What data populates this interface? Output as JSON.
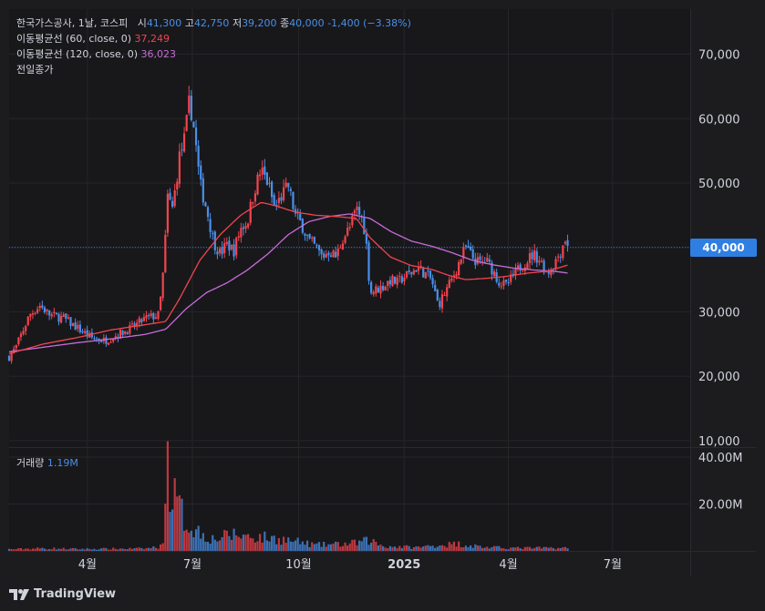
{
  "header": {
    "name": "한국가스공사, 1날, 코스피",
    "open_label": "시",
    "open": "41,300",
    "high_label": "고",
    "high": "42,750",
    "low_label": "저",
    "low": "39,200",
    "close_label": "종",
    "close": "40,000",
    "change": "-1,400 (−3.38%)",
    "ma60_label": "이동평균선 (60, close, 0)",
    "ma60_value": "37,249",
    "ma120_label": "이동평균선 (120, close, 0)",
    "ma120_value": "36,023",
    "prev_close_label": "전일종가"
  },
  "volume_panel": {
    "label": "거래량",
    "value": "1.19M"
  },
  "last_price_tag": "40,000",
  "brand": "TradingView",
  "colors": {
    "up": "#f2444d",
    "down": "#4a8fe7",
    "ma60": "#f2444d",
    "ma120": "#c86bd8",
    "background": "#1c1c1f",
    "accent": "#2f7fe3"
  },
  "chart_data": {
    "type": "candlestick",
    "price_axis": {
      "ticks": [
        "10,000",
        "20,000",
        "30,000",
        "40,000",
        "50,000",
        "60,000",
        "70,000"
      ],
      "ylim": [
        9000,
        77000
      ]
    },
    "volume_axis": {
      "ticks": [
        "20.00M",
        "40.00M"
      ],
      "ylim": [
        0,
        40000000
      ]
    },
    "x_ticks": [
      {
        "label": "4월",
        "pos": 0.115
      },
      {
        "label": "7월",
        "pos": 0.269
      },
      {
        "label": "10월",
        "pos": 0.425
      },
      {
        "label": "2025",
        "pos": 0.58
      },
      {
        "label": "4월",
        "pos": 0.733
      },
      {
        "label": "7월",
        "pos": 0.886
      }
    ],
    "last_price": 40000,
    "price_path": [
      [
        0.0,
        23000
      ],
      [
        0.01,
        24500
      ],
      [
        0.02,
        27000
      ],
      [
        0.03,
        29500
      ],
      [
        0.045,
        31000
      ],
      [
        0.06,
        29500
      ],
      [
        0.08,
        29000
      ],
      [
        0.1,
        27500
      ],
      [
        0.12,
        26000
      ],
      [
        0.14,
        25500
      ],
      [
        0.16,
        26500
      ],
      [
        0.18,
        27500
      ],
      [
        0.2,
        29000
      ],
      [
        0.22,
        29500
      ],
      [
        0.228,
        38000
      ],
      [
        0.232,
        48000
      ],
      [
        0.24,
        46000
      ],
      [
        0.25,
        54000
      ],
      [
        0.258,
        57000
      ],
      [
        0.265,
        63000
      ],
      [
        0.272,
        58000
      ],
      [
        0.28,
        50000
      ],
      [
        0.29,
        46000
      ],
      [
        0.3,
        41000
      ],
      [
        0.31,
        39000
      ],
      [
        0.32,
        40500
      ],
      [
        0.33,
        39500
      ],
      [
        0.34,
        43000
      ],
      [
        0.35,
        44000
      ],
      [
        0.36,
        49000
      ],
      [
        0.37,
        52000
      ],
      [
        0.38,
        50000
      ],
      [
        0.39,
        46000
      ],
      [
        0.4,
        48000
      ],
      [
        0.41,
        49500
      ],
      [
        0.42,
        45000
      ],
      [
        0.43,
        43500
      ],
      [
        0.44,
        41000
      ],
      [
        0.45,
        40000
      ],
      [
        0.46,
        38500
      ],
      [
        0.47,
        39500
      ],
      [
        0.48,
        38500
      ],
      [
        0.49,
        41500
      ],
      [
        0.5,
        43000
      ],
      [
        0.51,
        46000
      ],
      [
        0.52,
        44000
      ],
      [
        0.525,
        40000
      ],
      [
        0.53,
        33000
      ],
      [
        0.54,
        33500
      ],
      [
        0.55,
        34000
      ],
      [
        0.56,
        35000
      ],
      [
        0.57,
        34500
      ],
      [
        0.58,
        35500
      ],
      [
        0.59,
        36000
      ],
      [
        0.6,
        37000
      ],
      [
        0.61,
        36000
      ],
      [
        0.62,
        35000
      ],
      [
        0.63,
        31000
      ],
      [
        0.64,
        33000
      ],
      [
        0.65,
        35000
      ],
      [
        0.66,
        37500
      ],
      [
        0.67,
        40000
      ],
      [
        0.68,
        38500
      ],
      [
        0.69,
        37500
      ],
      [
        0.7,
        38000
      ],
      [
        0.71,
        36500
      ],
      [
        0.72,
        34500
      ],
      [
        0.73,
        34000
      ],
      [
        0.74,
        35500
      ],
      [
        0.75,
        37000
      ],
      [
        0.76,
        38000
      ],
      [
        0.77,
        39000
      ],
      [
        0.78,
        38000
      ],
      [
        0.79,
        36000
      ],
      [
        0.8,
        37500
      ],
      [
        0.81,
        39500
      ],
      [
        0.816,
        41500
      ],
      [
        0.82,
        40000
      ]
    ],
    "ma60": [
      [
        0.0,
        23500
      ],
      [
        0.05,
        25000
      ],
      [
        0.1,
        26000
      ],
      [
        0.15,
        27200
      ],
      [
        0.2,
        28000
      ],
      [
        0.23,
        28500
      ],
      [
        0.25,
        32000
      ],
      [
        0.28,
        38000
      ],
      [
        0.31,
        42000
      ],
      [
        0.34,
        45000
      ],
      [
        0.37,
        47000
      ],
      [
        0.39,
        46500
      ],
      [
        0.42,
        45500
      ],
      [
        0.45,
        45000
      ],
      [
        0.48,
        44800
      ],
      [
        0.51,
        44500
      ],
      [
        0.53,
        41500
      ],
      [
        0.56,
        38500
      ],
      [
        0.59,
        37200
      ],
      [
        0.62,
        36600
      ],
      [
        0.65,
        35500
      ],
      [
        0.67,
        35000
      ],
      [
        0.7,
        35200
      ],
      [
        0.73,
        35500
      ],
      [
        0.76,
        36000
      ],
      [
        0.79,
        36300
      ],
      [
        0.82,
        37249
      ]
    ],
    "ma120": [
      [
        0.0,
        23800
      ],
      [
        0.05,
        24500
      ],
      [
        0.1,
        25200
      ],
      [
        0.15,
        25800
      ],
      [
        0.2,
        26500
      ],
      [
        0.23,
        27300
      ],
      [
        0.26,
        30500
      ],
      [
        0.29,
        33000
      ],
      [
        0.32,
        34500
      ],
      [
        0.35,
        36500
      ],
      [
        0.38,
        39000
      ],
      [
        0.41,
        42000
      ],
      [
        0.44,
        44000
      ],
      [
        0.47,
        44800
      ],
      [
        0.5,
        45200
      ],
      [
        0.53,
        44500
      ],
      [
        0.56,
        42500
      ],
      [
        0.59,
        41000
      ],
      [
        0.62,
        40200
      ],
      [
        0.65,
        39200
      ],
      [
        0.68,
        38000
      ],
      [
        0.71,
        37300
      ],
      [
        0.74,
        36800
      ],
      [
        0.77,
        36500
      ],
      [
        0.8,
        36300
      ],
      [
        0.82,
        36023
      ]
    ],
    "volume_profile": [
      [
        0.0,
        0.7
      ],
      [
        0.05,
        1.1
      ],
      [
        0.1,
        0.8
      ],
      [
        0.15,
        0.9
      ],
      [
        0.2,
        1.0
      ],
      [
        0.225,
        2.0
      ],
      [
        0.232,
        38.0
      ],
      [
        0.24,
        24.0
      ],
      [
        0.25,
        18.0
      ],
      [
        0.26,
        12.0
      ],
      [
        0.28,
        8.0
      ],
      [
        0.3,
        5.0
      ],
      [
        0.33,
        7.0
      ],
      [
        0.36,
        6.0
      ],
      [
        0.4,
        5.0
      ],
      [
        0.45,
        2.5
      ],
      [
        0.5,
        3.0
      ],
      [
        0.53,
        4.5
      ],
      [
        0.55,
        2.0
      ],
      [
        0.6,
        1.5
      ],
      [
        0.63,
        2.5
      ],
      [
        0.66,
        3.0
      ],
      [
        0.7,
        1.5
      ],
      [
        0.75,
        1.2
      ],
      [
        0.8,
        1.3
      ],
      [
        0.82,
        1.19
      ]
    ]
  }
}
